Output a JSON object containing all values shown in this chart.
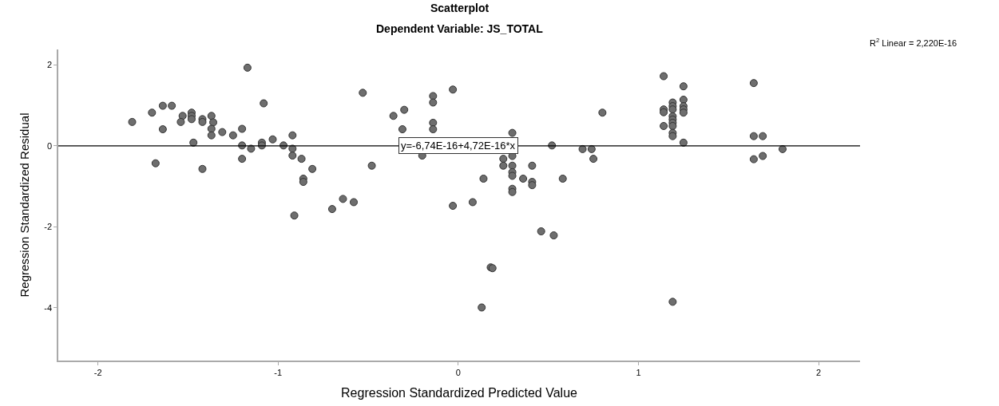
{
  "chart_data": {
    "type": "scatter",
    "title": "Scatterplot",
    "subtitle": "Dependent Variable: JS_TOTAL",
    "xlabel": "Regression Standardized Predicted Value",
    "ylabel": "Regression Standardized Residual",
    "xlim": [
      -2.22,
      2.23
    ],
    "ylim": [
      -5.3,
      2.38
    ],
    "xticks": [
      -2,
      -1,
      0,
      1,
      2
    ],
    "yticks": [
      -4,
      -2,
      0,
      2
    ],
    "marker": "circle",
    "annotations": [
      {
        "text": "y=-6,74E-16+4,72E-16*x",
        "x": 0,
        "y": 0
      },
      "R$^{2}$ Linear = 2,220E-16"
    ],
    "series": [
      {
        "color": "#6e6e6e",
        "x": [
          -1.81,
          -1.7,
          -1.68,
          -1.64,
          -1.64,
          -1.59,
          -1.53,
          -1.54,
          -1.48,
          -1.48,
          -1.48,
          -1.47,
          -1.42,
          -1.42,
          -1.42,
          -1.37,
          -1.36,
          -1.37,
          -1.37,
          -1.31,
          -1.25,
          -1.2,
          -1.2,
          -1.2,
          -1.15,
          -1.17,
          -1.08,
          -1.09,
          -1.09,
          -1.03,
          -0.97,
          -0.92,
          -0.92,
          -0.92,
          -0.87,
          -0.86,
          -0.86,
          -0.81,
          -0.91,
          -0.7,
          -0.64,
          -0.58,
          -0.53,
          -0.48,
          -0.36,
          -0.3,
          -0.31,
          -0.2,
          -0.14,
          -0.14,
          -0.14,
          -0.14,
          -0.03,
          -0.03,
          0.08,
          0.13,
          0.14,
          0.18,
          0.19,
          0.25,
          0.25,
          0.3,
          0.3,
          0.3,
          0.3,
          0.3,
          0.3,
          0.3,
          0.36,
          0.41,
          0.41,
          0.41,
          0.46,
          0.53,
          0.52,
          0.58,
          0.69,
          0.74,
          0.75,
          0.8,
          1.14,
          1.14,
          1.14,
          1.14,
          1.19,
          1.19,
          1.19,
          1.19,
          1.19,
          1.19,
          1.19,
          1.19,
          1.19,
          1.19,
          1.25,
          1.25,
          1.25,
          1.25,
          1.25,
          1.25,
          1.64,
          1.64,
          1.69,
          1.64,
          1.69,
          1.8
        ],
        "values": [
          0.59,
          0.82,
          -0.43,
          0.99,
          0.41,
          0.99,
          0.74,
          0.59,
          0.82,
          0.74,
          0.66,
          0.08,
          0.66,
          0.59,
          -0.57,
          0.74,
          0.58,
          0.42,
          0.26,
          0.34,
          0.26,
          0.42,
          0.01,
          -0.32,
          -0.07,
          1.93,
          1.05,
          0.08,
          0.01,
          0.16,
          0.01,
          0.26,
          -0.07,
          -0.24,
          -0.32,
          -0.81,
          -0.89,
          -0.57,
          -1.72,
          -1.56,
          -1.31,
          -1.39,
          1.31,
          -0.49,
          0.74,
          0.89,
          0.41,
          -0.24,
          1.23,
          1.07,
          0.57,
          0.41,
          1.39,
          -1.48,
          -1.39,
          -3.99,
          -0.81,
          -3.0,
          -3.02,
          -0.32,
          -0.49,
          0.32,
          -0.25,
          -0.49,
          -0.65,
          -0.74,
          -1.06,
          -1.14,
          -0.81,
          -0.49,
          -0.89,
          -0.97,
          -2.11,
          -2.21,
          0.01,
          -0.81,
          -0.08,
          -0.08,
          -0.32,
          0.82,
          1.72,
          0.9,
          0.83,
          0.49,
          1.07,
          0.98,
          0.9,
          0.73,
          0.65,
          0.57,
          0.49,
          0.32,
          0.24,
          -3.85,
          1.47,
          1.14,
          0.98,
          0.9,
          0.82,
          0.08,
          1.55,
          0.24,
          0.24,
          -0.33,
          -0.25,
          -0.08
        ]
      },
      {
        "type": "line",
        "marker": "none",
        "color": "#000000",
        "x": [
          -2.22,
          2.23
        ],
        "values": [
          0,
          0
        ]
      }
    ]
  }
}
